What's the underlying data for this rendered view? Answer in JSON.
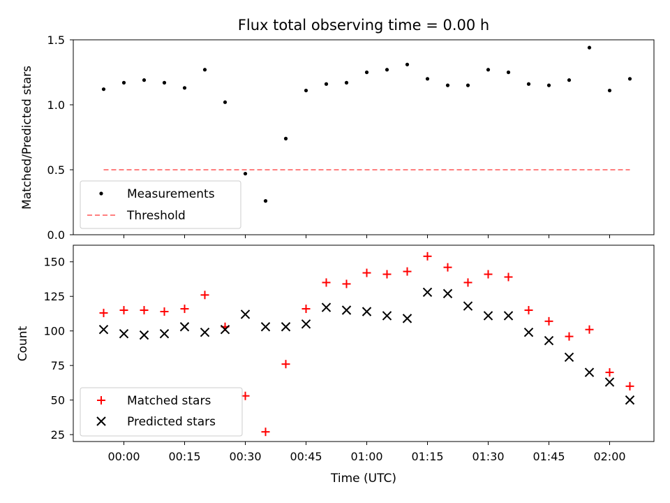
{
  "chart_data": [
    {
      "type": "scatter",
      "title": "Flux total observing time = 0.00 h",
      "ylabel": "Matched/Predicted stars",
      "xlabel": "",
      "ylim": [
        0,
        1.5
      ],
      "yticks": [
        0.0,
        0.5,
        1.0,
        1.5
      ],
      "ytick_labels": [
        "0.0",
        "0.5",
        "1.0",
        "1.5"
      ],
      "grid": false,
      "legend": "lower-left",
      "series": [
        {
          "name": "Measurements",
          "marker": "dot",
          "color": "#000000",
          "x": [
            "23:55",
            "00:00",
            "00:05",
            "00:10",
            "00:15",
            "00:20",
            "00:25",
            "00:30",
            "00:35",
            "00:40",
            "00:45",
            "00:50",
            "00:55",
            "01:00",
            "01:05",
            "01:10",
            "01:15",
            "01:20",
            "01:25",
            "01:30",
            "01:35",
            "01:40",
            "01:45",
            "01:50",
            "01:55",
            "02:00",
            "02:05"
          ],
          "y": [
            1.12,
            1.17,
            1.19,
            1.17,
            1.13,
            1.27,
            1.02,
            0.47,
            0.26,
            0.74,
            1.11,
            1.16,
            1.17,
            1.25,
            1.27,
            1.31,
            1.2,
            1.15,
            1.15,
            1.27,
            1.25,
            1.16,
            1.15,
            1.19,
            1.44,
            1.11,
            1.2
          ]
        },
        {
          "name": "Threshold",
          "marker": "dashed-line",
          "color": "#ff7f7f",
          "x": [
            "23:55",
            "02:05"
          ],
          "y": [
            0.5,
            0.5
          ]
        }
      ]
    },
    {
      "type": "scatter",
      "title": "",
      "ylabel": "Count",
      "xlabel": "Time (UTC)",
      "ylim": [
        20,
        162
      ],
      "yticks": [
        25,
        50,
        75,
        100,
        125,
        150
      ],
      "ytick_labels": [
        "25",
        "50",
        "75",
        "100",
        "125",
        "150"
      ],
      "xticks": [
        "00:00",
        "00:15",
        "00:30",
        "00:45",
        "01:00",
        "01:15",
        "01:30",
        "01:45",
        "02:00"
      ],
      "grid": false,
      "legend": "lower-left",
      "series": [
        {
          "name": "Matched stars",
          "marker": "plus",
          "color": "#ff0000",
          "x": [
            "23:55",
            "00:00",
            "00:05",
            "00:10",
            "00:15",
            "00:20",
            "00:25",
            "00:30",
            "00:35",
            "00:40",
            "00:45",
            "00:50",
            "00:55",
            "01:00",
            "01:05",
            "01:10",
            "01:15",
            "01:20",
            "01:25",
            "01:30",
            "01:35",
            "01:40",
            "01:45",
            "01:50",
            "01:55",
            "02:00",
            "02:05"
          ],
          "y": [
            113,
            115,
            115,
            114,
            116,
            126,
            103,
            53,
            27,
            76,
            116,
            135,
            134,
            142,
            141,
            143,
            154,
            146,
            135,
            141,
            139,
            115,
            107,
            96,
            101,
            70,
            60
          ]
        },
        {
          "name": "Predicted stars",
          "marker": "x",
          "color": "#000000",
          "x": [
            "23:55",
            "00:00",
            "00:05",
            "00:10",
            "00:15",
            "00:20",
            "00:25",
            "00:30",
            "00:35",
            "00:40",
            "00:45",
            "00:50",
            "00:55",
            "01:00",
            "01:05",
            "01:10",
            "01:15",
            "01:20",
            "01:25",
            "01:30",
            "01:35",
            "01:40",
            "01:45",
            "01:50",
            "01:55",
            "02:00",
            "02:05"
          ],
          "y": [
            101,
            98,
            97,
            98,
            103,
            99,
            101,
            112,
            103,
            103,
            105,
            117,
            115,
            114,
            111,
            109,
            128,
            127,
            118,
            111,
            111,
            99,
            93,
            81,
            70,
            63,
            50
          ]
        }
      ]
    }
  ]
}
